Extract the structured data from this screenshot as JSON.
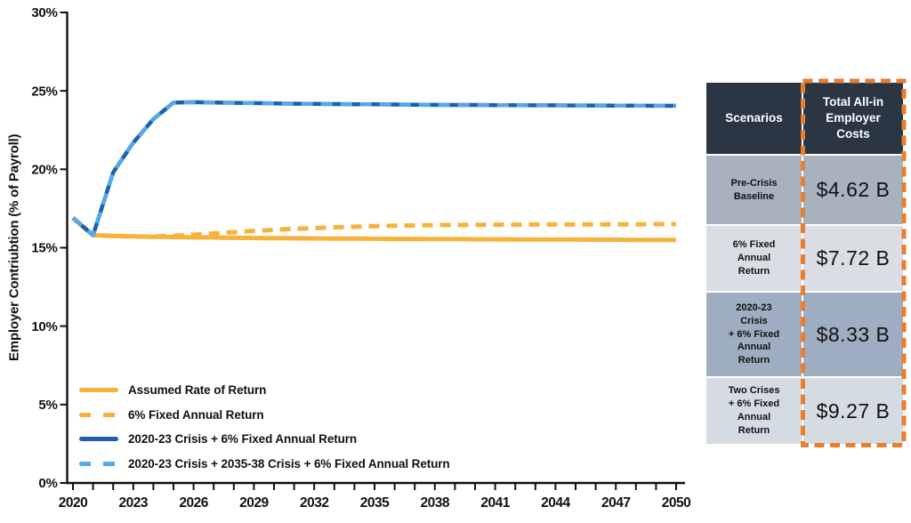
{
  "colors": {
    "gold": "#F6B33C",
    "dark_blue": "#1E5FAE",
    "light_blue": "#54A9E8",
    "axis": "#111111",
    "table_header_bg": "#2B3645",
    "row_dark": "#A8B1BE",
    "row_darker": "#9EADC2",
    "row_light": "#DADEE4",
    "row_light2": "#D5DBE3",
    "highlight_orange": "#E87E2E"
  },
  "chart_data": {
    "type": "line",
    "title": "",
    "xlabel": "",
    "ylabel": "Employer Contriubtion (% of Payroll)",
    "xlim": [
      2020,
      2050
    ],
    "ylim": [
      0,
      30
    ],
    "grid": false,
    "legend_position": "lower-left-inside",
    "yticks": [
      {
        "v": 0,
        "label": "0%"
      },
      {
        "v": 5,
        "label": "5%"
      },
      {
        "v": 10,
        "label": "10%"
      },
      {
        "v": 15,
        "label": "15%"
      },
      {
        "v": 20,
        "label": "20%"
      },
      {
        "v": 25,
        "label": "25%"
      },
      {
        "v": 30,
        "label": "30%"
      }
    ],
    "xticks": [
      {
        "v": 2020,
        "label": "2020"
      },
      {
        "v": 2023,
        "label": "2023"
      },
      {
        "v": 2026,
        "label": "2026"
      },
      {
        "v": 2029,
        "label": "2029"
      },
      {
        "v": 2032,
        "label": "2032"
      },
      {
        "v": 2035,
        "label": "2035"
      },
      {
        "v": 2038,
        "label": "2038"
      },
      {
        "v": 2041,
        "label": "2041"
      },
      {
        "v": 2044,
        "label": "2044"
      },
      {
        "v": 2047,
        "label": "2047"
      },
      {
        "v": 2050,
        "label": "2050"
      }
    ],
    "x": [
      2020,
      2021,
      2022,
      2023,
      2024,
      2025,
      2026,
      2027,
      2028,
      2029,
      2030,
      2031,
      2032,
      2033,
      2034,
      2035,
      2036,
      2037,
      2038,
      2039,
      2040,
      2041,
      2042,
      2043,
      2044,
      2045,
      2046,
      2047,
      2048,
      2049,
      2050
    ],
    "series": [
      {
        "name": "Assumed Rate of Return",
        "color": "#F6B33C",
        "dash": null,
        "width": 5,
        "values": [
          16.9,
          15.8,
          15.75,
          15.72,
          15.7,
          15.68,
          15.66,
          15.65,
          15.63,
          15.62,
          15.61,
          15.6,
          15.59,
          15.58,
          15.58,
          15.57,
          15.56,
          15.56,
          15.55,
          15.55,
          15.54,
          15.54,
          15.53,
          15.53,
          15.52,
          15.52,
          15.51,
          15.51,
          15.5,
          15.5,
          15.5
        ]
      },
      {
        "name": "6% Fixed Annual Return",
        "color": "#F6B33C",
        "dash": "12 8",
        "width": 5,
        "values": [
          16.9,
          15.8,
          15.74,
          15.71,
          15.72,
          15.76,
          15.83,
          15.91,
          15.99,
          16.07,
          16.14,
          16.2,
          16.25,
          16.3,
          16.34,
          16.37,
          16.4,
          16.42,
          16.44,
          16.45,
          16.46,
          16.47,
          16.47,
          16.48,
          16.48,
          16.48,
          16.49,
          16.49,
          16.49,
          16.5,
          16.5
        ]
      },
      {
        "name": "2020-23 Crisis + 6% Fixed Annual Return",
        "color": "#1E5FAE",
        "dash": null,
        "width": 4.5,
        "values": [
          16.9,
          15.8,
          19.8,
          21.7,
          23.2,
          24.25,
          24.28,
          24.26,
          24.24,
          24.22,
          24.2,
          24.18,
          24.17,
          24.16,
          24.15,
          24.14,
          24.13,
          24.12,
          24.11,
          24.1,
          24.1,
          24.09,
          24.09,
          24.08,
          24.08,
          24.07,
          24.07,
          24.06,
          24.06,
          24.05,
          24.05
        ]
      },
      {
        "name": "2020-23 Crisis + 2035-38 Crisis + 6% Fixed Annual Return",
        "color": "#54A9E8",
        "dash": "13 9",
        "width": 4.5,
        "values": [
          16.9,
          15.8,
          19.8,
          21.7,
          23.2,
          24.25,
          24.28,
          24.26,
          24.24,
          24.22,
          24.2,
          24.18,
          24.17,
          24.16,
          24.15,
          24.14,
          24.13,
          24.12,
          24.11,
          24.1,
          24.1,
          24.09,
          24.09,
          24.08,
          24.08,
          24.07,
          24.07,
          24.06,
          24.06,
          24.05,
          24.05
        ]
      }
    ]
  },
  "table": {
    "columns": [
      "Scenarios",
      "Total All-in\nEmployer\nCosts"
    ],
    "rows": [
      {
        "scenario": "Pre-Crisis\nBaseline",
        "cost": "$4.62 B"
      },
      {
        "scenario": "6% Fixed\nAnnual\nReturn",
        "cost": "$7.72 B"
      },
      {
        "scenario": "2020-23\nCrisis\n+ 6% Fixed\nAnnual\nReturn",
        "cost": "$8.33 B"
      },
      {
        "scenario": "Two Crises\n+ 6% Fixed\nAnnual\nReturn",
        "cost": "$9.27 B"
      }
    ]
  }
}
